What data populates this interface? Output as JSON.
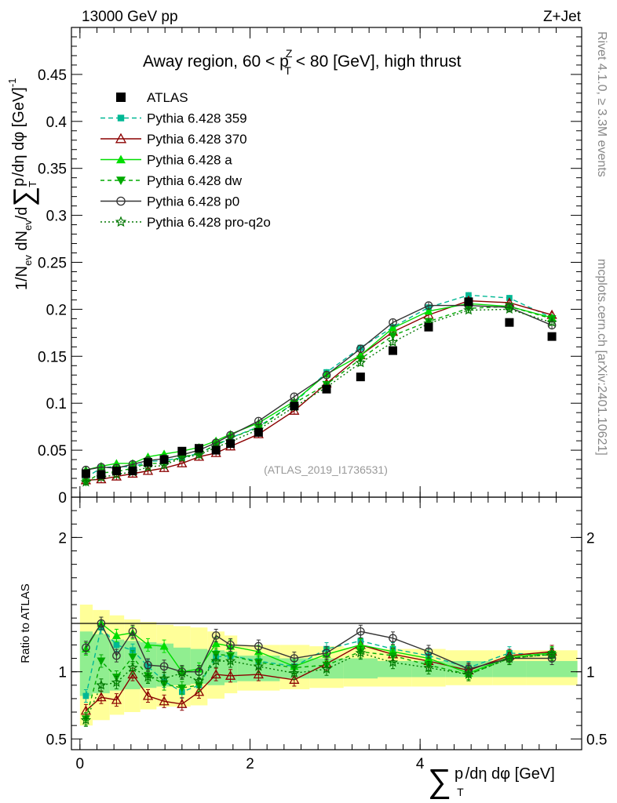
{
  "header": {
    "energy_label": "13000 GeV pp",
    "process_label": "Z+Jet"
  },
  "side_labels": {
    "rivet_events": "Rivet 4.1.0, ≥ 3.3M events",
    "source": "mcplots.cern.ch [arXiv:2401.10621]"
  },
  "chart_data": [
    {
      "type": "line",
      "panel": "main",
      "title_parts": {
        "pre": "Away region, 60 < p",
        "sup": "Z",
        "sub": "T",
        "post": " < 80 [GeV], high thrust"
      },
      "ylabel_parts": {
        "a": "1/N",
        "a_sub": "ev",
        "b": " dN",
        "b_sub": "ev",
        "c": "/d",
        "sum": "∑",
        "d": "p",
        "d_sub": "T",
        "e": " /dη dφ  [GeV]",
        "e_sup": "-1"
      },
      "ylim": [
        0,
        0.5
      ],
      "xlim": [
        -0.1,
        5.9
      ],
      "yticks": [
        0,
        0.05,
        0.1,
        0.15,
        0.2,
        0.25,
        0.3,
        0.35,
        0.4,
        0.45
      ],
      "ytick_labels": [
        "0",
        "0.05",
        "0.1",
        "0.15",
        "0.2",
        "0.25",
        "0.3",
        "0.35",
        "0.4",
        "0.45"
      ],
      "watermark": "(ATLAS_2019_I1736531)",
      "x": [
        0.07,
        0.25,
        0.43,
        0.62,
        0.8,
        0.99,
        1.2,
        1.4,
        1.6,
        1.77,
        2.1,
        2.52,
        2.9,
        3.3,
        3.68,
        4.1,
        4.57,
        5.05,
        5.55
      ],
      "atlas": [
        0.025,
        0.024,
        0.028,
        0.028,
        0.037,
        0.04,
        0.049,
        0.052,
        0.05,
        0.057,
        0.069,
        0.097,
        0.115,
        0.128,
        0.156,
        0.181,
        0.208,
        0.186,
        0.171
      ],
      "series": [
        {
          "name": "Pythia 6.428 359",
          "color": "#00b894",
          "marker": "square-small",
          "dash": "6,4",
          "values": [
            0.021,
            0.031,
            0.033,
            0.032,
            0.038,
            0.039,
            0.042,
            0.047,
            0.055,
            0.063,
            0.075,
            0.1,
            0.133,
            0.159,
            0.181,
            0.202,
            0.215,
            0.212,
            0.191
          ]
        },
        {
          "name": "Pythia 6.428 370",
          "color": "#8b0000",
          "marker": "triangle-open",
          "dash": "",
          "values": [
            0.018,
            0.019,
            0.022,
            0.025,
            0.028,
            0.031,
            0.036,
            0.043,
            0.047,
            0.054,
            0.067,
            0.092,
            0.121,
            0.151,
            0.176,
            0.194,
            0.209,
            0.207,
            0.194
          ]
        },
        {
          "name": "Pythia 6.428 a",
          "color": "#00dd00",
          "marker": "triangle",
          "dash": "",
          "values": [
            0.029,
            0.033,
            0.036,
            0.036,
            0.043,
            0.046,
            0.049,
            0.053,
            0.06,
            0.067,
            0.079,
            0.102,
            0.131,
            0.151,
            0.18,
            0.198,
            0.206,
            0.203,
            0.191
          ]
        },
        {
          "name": "Pythia 6.428 dw",
          "color": "#00aa00",
          "marker": "triangle-down",
          "dash": "5,4",
          "values": [
            0.016,
            0.026,
            0.027,
            0.031,
            0.036,
            0.036,
            0.043,
            0.046,
            0.056,
            0.063,
            0.074,
            0.1,
            0.12,
            0.147,
            0.172,
            0.187,
            0.201,
            0.203,
            0.19
          ]
        },
        {
          "name": "Pythia 6.428 p0",
          "color": "#333333",
          "marker": "circle-open",
          "dash": "",
          "values": [
            0.029,
            0.032,
            0.031,
            0.035,
            0.039,
            0.041,
            0.045,
            0.05,
            0.058,
            0.066,
            0.081,
            0.107,
            0.13,
            0.158,
            0.186,
            0.204,
            0.204,
            0.202,
            0.183
          ]
        },
        {
          "name": "Pythia 6.428 pro-q2o",
          "color": "#007700",
          "marker": "star",
          "dash": "2,3",
          "values": [
            0.016,
            0.021,
            0.024,
            0.027,
            0.032,
            0.034,
            0.042,
            0.045,
            0.053,
            0.059,
            0.072,
            0.096,
            0.117,
            0.143,
            0.165,
            0.185,
            0.199,
            0.2,
            0.186
          ]
        }
      ]
    },
    {
      "type": "line",
      "panel": "ratio",
      "ylabel": "Ratio to ATLAS",
      "xlabel_parts": {
        "sum": "∑",
        "p": "p",
        "p_sub": "T",
        "rest": "/dη dφ [GeV]"
      },
      "ylim": [
        0.42,
        2.3
      ],
      "xlim": [
        -0.1,
        5.9
      ],
      "yticks": [
        0.5,
        1,
        2
      ],
      "ytick_labels": [
        "0.5",
        "1",
        "2"
      ],
      "xticks": [
        0,
        2,
        4
      ],
      "xtick_labels": [
        "0",
        "2",
        "4"
      ],
      "x_edges": [
        0.0,
        0.15,
        0.35,
        0.52,
        0.71,
        0.9,
        1.1,
        1.3,
        1.5,
        1.7,
        1.85,
        2.35,
        2.7,
        3.1,
        3.5,
        3.9,
        4.3,
        4.85,
        5.25,
        5.85
      ],
      "band_inner": [
        [
          0.82,
          1.3
        ],
        [
          0.84,
          1.28
        ],
        [
          0.86,
          1.24
        ],
        [
          0.87,
          1.23
        ],
        [
          0.88,
          1.22
        ],
        [
          0.89,
          1.21
        ],
        [
          0.9,
          1.18
        ],
        [
          0.91,
          1.17
        ],
        [
          0.9,
          1.16
        ],
        [
          0.92,
          1.15
        ],
        [
          0.93,
          1.12
        ],
        [
          0.95,
          1.1
        ],
        [
          0.95,
          1.1
        ],
        [
          0.95,
          1.1
        ],
        [
          0.96,
          1.08
        ],
        [
          0.96,
          1.08
        ],
        [
          0.96,
          1.08
        ],
        [
          0.96,
          1.08
        ],
        [
          0.96,
          1.08
        ]
      ],
      "band_outer": [
        [
          0.6,
          1.5
        ],
        [
          0.64,
          1.46
        ],
        [
          0.68,
          1.42
        ],
        [
          0.7,
          1.39
        ],
        [
          0.72,
          1.37
        ],
        [
          0.74,
          1.35
        ],
        [
          0.74,
          1.34
        ],
        [
          0.75,
          1.33
        ],
        [
          0.8,
          1.3
        ],
        [
          0.84,
          1.27
        ],
        [
          0.86,
          1.2
        ],
        [
          0.87,
          1.2
        ],
        [
          0.88,
          1.19
        ],
        [
          0.89,
          1.18
        ],
        [
          0.89,
          1.17
        ],
        [
          0.89,
          1.17
        ],
        [
          0.9,
          1.16
        ],
        [
          0.9,
          1.16
        ],
        [
          0.9,
          1.16
        ]
      ],
      "series": [
        {
          "name": "Pythia 6.428 359",
          "values": [
            0.82,
            1.33,
            1.2,
            1.16,
            1.04,
            0.93,
            0.85,
            0.9,
            1.11,
            1.12,
            1.08,
            1.04,
            1.17,
            1.23,
            1.17,
            1.12,
            1.03,
            1.14,
            1.12
          ]
        },
        {
          "name": "Pythia 6.428 370",
          "values": [
            0.71,
            0.81,
            0.79,
            0.98,
            0.82,
            0.78,
            0.76,
            0.85,
            0.98,
            0.97,
            0.98,
            0.94,
            1.06,
            1.2,
            1.13,
            1.08,
            1.01,
            1.12,
            1.15
          ]
        },
        {
          "name": "Pythia 6.428 a",
          "values": [
            1.17,
            1.36,
            1.27,
            1.29,
            1.2,
            1.19,
            1.0,
            1.02,
            1.21,
            1.19,
            1.15,
            1.04,
            1.13,
            1.2,
            1.15,
            1.1,
            0.99,
            1.11,
            1.14
          ]
        },
        {
          "name": "Pythia 6.428 dw",
          "values": [
            0.65,
            1.08,
            0.96,
            1.11,
            0.97,
            0.91,
            0.88,
            0.9,
            1.13,
            1.12,
            1.07,
            1.03,
            1.05,
            1.15,
            1.12,
            1.05,
            0.98,
            1.1,
            1.13
          ]
        },
        {
          "name": "Pythia 6.428 p0",
          "values": [
            1.18,
            1.36,
            1.12,
            1.3,
            1.05,
            1.04,
            1.0,
            1.0,
            1.27,
            1.2,
            1.19,
            1.1,
            1.14,
            1.3,
            1.25,
            1.15,
            1.02,
            1.1,
            1.1
          ]
        },
        {
          "name": "Pythia 6.428 pro-q2o",
          "values": [
            0.64,
            0.9,
            0.92,
            1.03,
            0.96,
            0.95,
            0.99,
            0.93,
            1.08,
            1.08,
            1.04,
            0.99,
            1.02,
            1.14,
            1.07,
            1.03,
            0.98,
            1.1,
            1.13
          ]
        }
      ]
    }
  ]
}
